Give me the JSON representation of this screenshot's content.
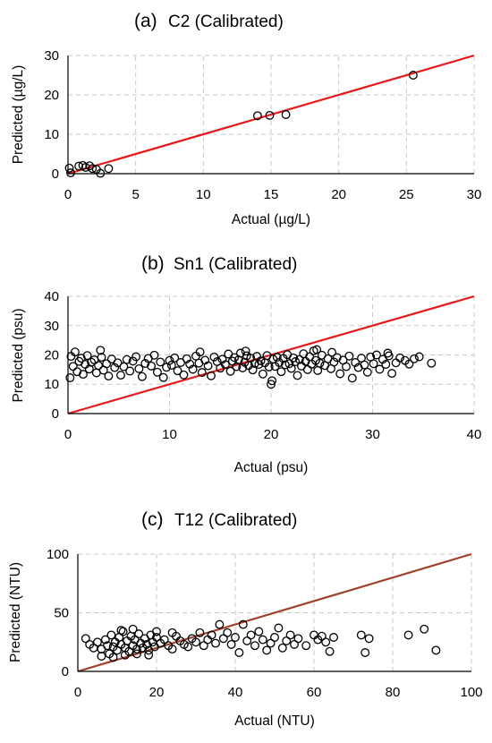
{
  "figure": {
    "panels": [
      {
        "label": "(a)",
        "title": "C2 (Calibrated)",
        "xlabel": "Actual (µg/L)",
        "ylabel": "Predicted (µg/L)",
        "xticks": [
          "0",
          "5",
          "10",
          "15",
          "20",
          "25",
          "30"
        ],
        "yticks": [
          "0",
          "10",
          "20",
          "30"
        ]
      },
      {
        "label": "(b)",
        "title": "Sn1 (Calibrated)",
        "xlabel": "Actual (psu)",
        "ylabel": "Predicted (psu)",
        "xticks": [
          "0",
          "10",
          "20",
          "30",
          "40"
        ],
        "yticks": [
          "0",
          "10",
          "20",
          "30",
          "40"
        ]
      },
      {
        "label": "(c)",
        "title": "T12 (Calibrated)",
        "xlabel": "Actual (NTU)",
        "ylabel": "Predicted (NTU)",
        "xticks": [
          "0",
          "20",
          "40",
          "60",
          "80",
          "100"
        ],
        "yticks": [
          "0",
          "50",
          "100"
        ]
      }
    ]
  },
  "chart_data": [
    {
      "type": "scatter",
      "title": "C2 (Calibrated)",
      "xlabel": "Actual (µg/L)",
      "ylabel": "Predicted (µg/L)",
      "xlim": [
        0,
        30
      ],
      "ylim": [
        0,
        30
      ],
      "grid": true,
      "line_color": "#e8191c",
      "marker_color": "#000000",
      "reference_line": {
        "type": "1:1",
        "from": [
          0,
          0
        ],
        "to": [
          30,
          30
        ]
      },
      "points": [
        [
          0.1,
          1.4
        ],
        [
          0.2,
          0.2
        ],
        [
          0.8,
          1.9
        ],
        [
          1.1,
          2.1
        ],
        [
          1.3,
          1.6
        ],
        [
          1.6,
          2.0
        ],
        [
          1.8,
          1.3
        ],
        [
          2.1,
          1.1
        ],
        [
          2.4,
          0.1
        ],
        [
          3.0,
          1.3
        ],
        [
          14.0,
          14.7
        ],
        [
          14.9,
          14.8
        ],
        [
          16.1,
          15.0
        ],
        [
          25.5,
          25.0
        ]
      ]
    },
    {
      "type": "scatter",
      "title": "Sn1 (Calibrated)",
      "xlabel": "Actual (psu)",
      "ylabel": "Predicted (psu)",
      "xlim": [
        0,
        40
      ],
      "ylim": [
        0,
        40
      ],
      "grid": true,
      "line_color": "#e8191c",
      "marker_color": "#000000",
      "reference_line": {
        "type": "1:1",
        "from": [
          0,
          0
        ],
        "to": [
          40,
          40
        ]
      },
      "points": [
        [
          0.2,
          12.2
        ],
        [
          0.3,
          19.5
        ],
        [
          0.5,
          16.1
        ],
        [
          0.7,
          21.0
        ],
        [
          0.9,
          14.3
        ],
        [
          1.1,
          17.8
        ],
        [
          1.3,
          18.9
        ],
        [
          1.5,
          13.4
        ],
        [
          1.7,
          16.8
        ],
        [
          1.9,
          19.8
        ],
        [
          2.1,
          15.2
        ],
        [
          2.3,
          17.5
        ],
        [
          2.6,
          18.3
        ],
        [
          2.8,
          13.9
        ],
        [
          3.0,
          16.4
        ],
        [
          3.3,
          19.2
        ],
        [
          3.5,
          14.8
        ],
        [
          3.8,
          17.0
        ],
        [
          4.0,
          12.8
        ],
        [
          4.3,
          18.6
        ],
        [
          4.6,
          15.7
        ],
        [
          4.9,
          17.3
        ],
        [
          5.2,
          13.1
        ],
        [
          5.5,
          16.0
        ],
        [
          5.8,
          18.4
        ],
        [
          6.1,
          14.5
        ],
        [
          6.4,
          17.9
        ],
        [
          6.7,
          19.4
        ],
        [
          7.0,
          15.3
        ],
        [
          7.3,
          12.6
        ],
        [
          7.6,
          17.1
        ],
        [
          7.9,
          18.8
        ],
        [
          8.2,
          16.2
        ],
        [
          8.5,
          19.9
        ],
        [
          8.8,
          14.1
        ],
        [
          9.1,
          17.6
        ],
        [
          9.4,
          12.3
        ],
        [
          9.7,
          15.8
        ],
        [
          10.0,
          18.1
        ],
        [
          10.2,
          16.5
        ],
        [
          10.5,
          19.0
        ],
        [
          10.8,
          14.6
        ],
        [
          11.1,
          17.4
        ],
        [
          11.4,
          13.2
        ],
        [
          11.7,
          18.7
        ],
        [
          12.0,
          16.9
        ],
        [
          12.3,
          15.1
        ],
        [
          12.6,
          19.6
        ],
        [
          12.9,
          17.2
        ],
        [
          13.2,
          14.0
        ],
        [
          13.5,
          18.2
        ],
        [
          13.8,
          16.3
        ],
        [
          14.1,
          12.9
        ],
        [
          14.4,
          19.3
        ],
        [
          14.7,
          17.7
        ],
        [
          15.0,
          15.5
        ],
        [
          15.2,
          18.5
        ],
        [
          15.5,
          16.7
        ],
        [
          15.8,
          20.3
        ],
        [
          16.0,
          14.4
        ],
        [
          16.2,
          17.9
        ],
        [
          16.4,
          19.1
        ],
        [
          16.6,
          16.0
        ],
        [
          16.8,
          18.3
        ],
        [
          17.0,
          20.6
        ],
        [
          17.2,
          15.6
        ],
        [
          17.4,
          17.5
        ],
        [
          17.6,
          19.7
        ],
        [
          17.8,
          16.4
        ],
        [
          18.0,
          18.9
        ],
        [
          18.2,
          14.9
        ],
        [
          18.4,
          17.1
        ],
        [
          18.6,
          19.5
        ],
        [
          18.8,
          16.8
        ],
        [
          19.0,
          18.0
        ],
        [
          19.2,
          13.5
        ],
        [
          19.4,
          17.3
        ],
        [
          19.6,
          19.8
        ],
        [
          19.8,
          15.9
        ],
        [
          20.0,
          10.0
        ],
        [
          20.1,
          11.2
        ],
        [
          20.2,
          18.6
        ],
        [
          20.4,
          16.1
        ],
        [
          20.6,
          19.2
        ],
        [
          20.8,
          17.4
        ],
        [
          21.0,
          14.3
        ],
        [
          21.2,
          18.8
        ],
        [
          21.4,
          16.6
        ],
        [
          21.6,
          20.1
        ],
        [
          21.8,
          17.0
        ],
        [
          22.0,
          15.4
        ],
        [
          22.2,
          19.0
        ],
        [
          22.4,
          17.7
        ],
        [
          22.6,
          13.0
        ],
        [
          22.8,
          18.4
        ],
        [
          23.0,
          16.2
        ],
        [
          23.2,
          20.4
        ],
        [
          23.4,
          17.8
        ],
        [
          23.6,
          15.0
        ],
        [
          23.8,
          19.4
        ],
        [
          24.0,
          16.9
        ],
        [
          24.2,
          21.4
        ],
        [
          24.4,
          18.1
        ],
        [
          24.6,
          14.7
        ],
        [
          24.8,
          17.2
        ],
        [
          25.0,
          19.9
        ],
        [
          25.3,
          16.4
        ],
        [
          25.6,
          18.7
        ],
        [
          25.9,
          15.3
        ],
        [
          26.2,
          17.6
        ],
        [
          26.5,
          19.1
        ],
        [
          26.8,
          13.6
        ],
        [
          27.1,
          18.2
        ],
        [
          27.4,
          16.0
        ],
        [
          27.7,
          19.6
        ],
        [
          28.0,
          12.1
        ],
        [
          28.3,
          17.4
        ],
        [
          28.6,
          15.7
        ],
        [
          28.9,
          18.9
        ],
        [
          29.2,
          16.6
        ],
        [
          29.5,
          14.1
        ],
        [
          29.8,
          19.3
        ],
        [
          30.1,
          17.0
        ],
        [
          30.4,
          20.0
        ],
        [
          30.7,
          15.1
        ],
        [
          31.0,
          18.5
        ],
        [
          31.3,
          16.8
        ],
        [
          31.6,
          19.7
        ],
        [
          31.9,
          13.7
        ],
        [
          32.3,
          17.3
        ],
        [
          32.7,
          19.0
        ],
        [
          33.2,
          18.1
        ],
        [
          33.6,
          16.9
        ],
        [
          34.1,
          18.7
        ],
        [
          34.6,
          19.4
        ],
        [
          35.8,
          17.2
        ],
        [
          3.2,
          21.6
        ],
        [
          13.0,
          21.0
        ],
        [
          17.5,
          21.3
        ],
        [
          24.5,
          21.8
        ],
        [
          26.0,
          20.9
        ],
        [
          31.5,
          20.6
        ]
      ]
    },
    {
      "type": "scatter",
      "title": "T12 (Calibrated)",
      "xlabel": "Actual (NTU)",
      "ylabel": "Predicted (NTU)",
      "xlim": [
        0,
        100
      ],
      "ylim": [
        0,
        100
      ],
      "grid": true,
      "line_color": "#a0422a",
      "marker_color": "#000000",
      "reference_line": {
        "type": "1:1",
        "from": [
          0,
          0
        ],
        "to": [
          100,
          100
        ]
      },
      "points": [
        [
          2,
          28
        ],
        [
          3,
          23
        ],
        [
          4,
          20
        ],
        [
          5,
          25
        ],
        [
          6,
          19
        ],
        [
          7,
          27
        ],
        [
          7.5,
          22
        ],
        [
          8,
          15
        ],
        [
          8.5,
          31
        ],
        [
          9,
          21
        ],
        [
          9.5,
          25
        ],
        [
          10,
          18
        ],
        [
          10.5,
          29
        ],
        [
          11,
          23
        ],
        [
          11.5,
          34
        ],
        [
          12,
          20
        ],
        [
          12.5,
          26
        ],
        [
          13,
          17
        ],
        [
          13.5,
          30
        ],
        [
          14,
          22
        ],
        [
          14.5,
          27
        ],
        [
          15,
          19
        ],
        [
          15.5,
          32
        ],
        [
          16,
          24
        ],
        [
          16.5,
          20
        ],
        [
          17,
          28
        ],
        [
          17.5,
          23
        ],
        [
          18,
          18
        ],
        [
          18.5,
          31
        ],
        [
          19,
          25
        ],
        [
          19.5,
          21
        ],
        [
          20,
          29
        ],
        [
          21,
          24
        ],
        [
          22,
          27
        ],
        [
          23,
          22
        ],
        [
          24,
          19
        ],
        [
          25,
          30
        ],
        [
          26,
          26
        ],
        [
          27,
          23
        ],
        [
          28,
          21
        ],
        [
          29,
          28
        ],
        [
          30,
          25
        ],
        [
          31,
          33
        ],
        [
          32,
          22
        ],
        [
          33,
          27
        ],
        [
          34,
          31
        ],
        [
          35,
          24
        ],
        [
          36,
          40
        ],
        [
          37,
          28
        ],
        [
          38,
          33
        ],
        [
          39,
          23
        ],
        [
          40,
          29
        ],
        [
          41,
          16
        ],
        [
          42,
          40
        ],
        [
          43,
          26
        ],
        [
          44,
          31
        ],
        [
          45,
          22
        ],
        [
          46,
          34
        ],
        [
          47,
          27
        ],
        [
          48,
          18
        ],
        [
          49,
          24
        ],
        [
          50,
          29
        ],
        [
          51,
          37
        ],
        [
          52,
          20
        ],
        [
          53,
          26
        ],
        [
          54,
          31
        ],
        [
          55,
          23
        ],
        [
          56,
          28
        ],
        [
          58,
          22
        ],
        [
          60,
          31
        ],
        [
          61,
          27
        ],
        [
          62,
          30
        ],
        [
          63,
          25
        ],
        [
          64,
          17
        ],
        [
          65,
          29
        ],
        [
          72,
          31
        ],
        [
          73,
          16
        ],
        [
          74,
          28
        ],
        [
          84,
          31
        ],
        [
          88,
          36
        ],
        [
          91,
          18
        ],
        [
          6,
          13
        ],
        [
          9,
          12
        ],
        [
          12,
          14
        ],
        [
          15,
          15
        ],
        [
          18,
          14
        ],
        [
          11,
          35
        ],
        [
          14,
          36
        ],
        [
          20,
          34
        ],
        [
          24,
          33
        ]
      ]
    }
  ]
}
